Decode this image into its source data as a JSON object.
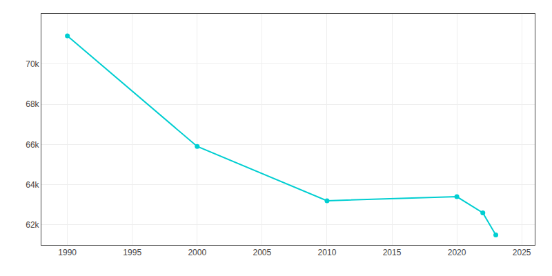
{
  "chart_data": {
    "type": "line",
    "x": [
      1990,
      2000,
      2010,
      2020,
      2022,
      2023
    ],
    "values": [
      71400,
      65900,
      63200,
      63400,
      62600,
      61500
    ],
    "color": "#00CED1",
    "marker": "circle",
    "line_style": "solid",
    "xlim": [
      1988,
      2026
    ],
    "xticks": [
      1990,
      1995,
      2000,
      2005,
      2010,
      2015,
      2020,
      2025
    ],
    "ylim": [
      61000,
      72500
    ],
    "yticks": [
      {
        "value": 62000,
        "label": "62k"
      },
      {
        "value": 64000,
        "label": "64k"
      },
      {
        "value": 66000,
        "label": "66k"
      },
      {
        "value": 68000,
        "label": "68k"
      },
      {
        "value": 70000,
        "label": "70k"
      }
    ],
    "grid": true
  }
}
